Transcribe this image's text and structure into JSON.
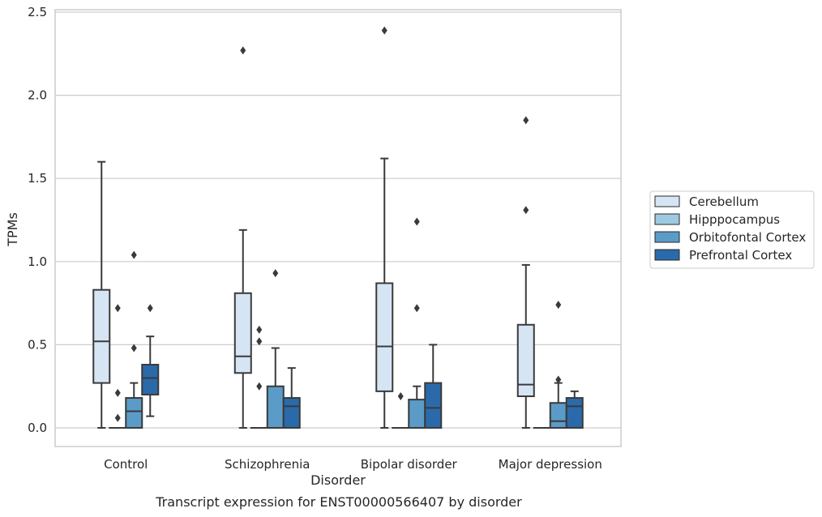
{
  "chart_data": {
    "type": "box",
    "xlabel": "Disorder",
    "ylabel": "TPMs",
    "caption": "Transcript expression for ENST00000566407 by disorder",
    "ylim": [
      -0.12,
      2.52
    ],
    "yticks": [
      0.0,
      0.5,
      1.0,
      1.5,
      2.0,
      2.5
    ],
    "ytick_labels": [
      "0.0",
      "0.5",
      "1.0",
      "1.5",
      "2.0",
      "2.5"
    ],
    "grid": "horizontal",
    "legend_position": "right",
    "categories": [
      "Control",
      "Schizophrenia",
      "Bipolar disorder",
      "Major depression"
    ],
    "series": [
      {
        "name": "Cerebellum",
        "color": "#d6e5f4",
        "boxes": [
          {
            "whisker_low": 0.0,
            "q1": 0.27,
            "median": 0.52,
            "q3": 0.83,
            "whisker_high": 1.6,
            "outliers": []
          },
          {
            "whisker_low": 0.0,
            "q1": 0.33,
            "median": 0.43,
            "q3": 0.81,
            "whisker_high": 1.19,
            "outliers": [
              2.27
            ]
          },
          {
            "whisker_low": 0.0,
            "q1": 0.22,
            "median": 0.49,
            "q3": 0.87,
            "whisker_high": 1.62,
            "outliers": [
              2.39
            ]
          },
          {
            "whisker_low": 0.0,
            "q1": 0.19,
            "median": 0.26,
            "q3": 0.62,
            "whisker_high": 0.98,
            "outliers": [
              1.31,
              1.85
            ]
          }
        ]
      },
      {
        "name": "Hipppocampus",
        "color": "#9ecae1",
        "boxes": [
          {
            "whisker_low": 0.0,
            "q1": 0.0,
            "median": 0.0,
            "q3": 0.0,
            "whisker_high": 0.0,
            "outliers": [
              0.06,
              0.21,
              0.72
            ]
          },
          {
            "whisker_low": 0.0,
            "q1": 0.0,
            "median": 0.0,
            "q3": 0.0,
            "whisker_high": 0.0,
            "outliers": [
              0.25,
              0.52,
              0.59
            ]
          },
          {
            "whisker_low": 0.0,
            "q1": 0.0,
            "median": 0.0,
            "q3": 0.0,
            "whisker_high": 0.0,
            "outliers": [
              0.19
            ]
          },
          {
            "whisker_low": 0.0,
            "q1": 0.0,
            "median": 0.0,
            "q3": 0.0,
            "whisker_high": 0.0,
            "outliers": []
          }
        ]
      },
      {
        "name": "Orbitofontal Cortex",
        "color": "#5b9bc8",
        "boxes": [
          {
            "whisker_low": 0.0,
            "q1": 0.0,
            "median": 0.1,
            "q3": 0.18,
            "whisker_high": 0.27,
            "outliers": [
              0.48,
              1.04
            ]
          },
          {
            "whisker_low": 0.0,
            "q1": 0.0,
            "median": 0.0,
            "q3": 0.25,
            "whisker_high": 0.48,
            "outliers": [
              0.93
            ]
          },
          {
            "whisker_low": 0.0,
            "q1": 0.0,
            "median": 0.0,
            "q3": 0.17,
            "whisker_high": 0.25,
            "outliers": [
              0.72,
              1.24
            ]
          },
          {
            "whisker_low": 0.0,
            "q1": 0.0,
            "median": 0.04,
            "q3": 0.15,
            "whisker_high": 0.27,
            "outliers": [
              0.29,
              0.74
            ]
          }
        ]
      },
      {
        "name": "Prefrontal Cortex",
        "color": "#2a6aaa",
        "boxes": [
          {
            "whisker_low": 0.07,
            "q1": 0.2,
            "median": 0.3,
            "q3": 0.38,
            "whisker_high": 0.55,
            "outliers": [
              0.72
            ]
          },
          {
            "whisker_low": 0.0,
            "q1": 0.0,
            "median": 0.13,
            "q3": 0.18,
            "whisker_high": 0.36,
            "outliers": []
          },
          {
            "whisker_low": 0.0,
            "q1": 0.0,
            "median": 0.12,
            "q3": 0.27,
            "whisker_high": 0.5,
            "outliers": []
          },
          {
            "whisker_low": 0.0,
            "q1": 0.0,
            "median": 0.13,
            "q3": 0.18,
            "whisker_high": 0.22,
            "outliers": []
          }
        ]
      }
    ]
  }
}
